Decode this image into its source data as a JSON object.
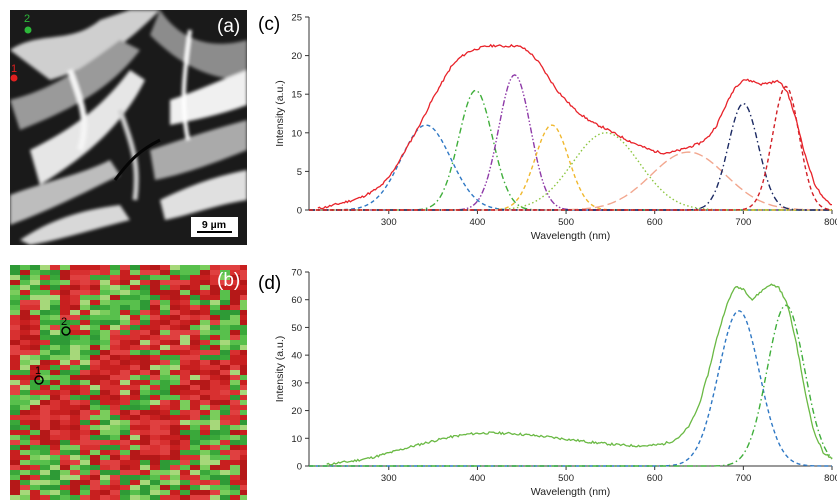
{
  "panels": {
    "a": {
      "label": "(a)",
      "scalebar": "9 µm",
      "markers": [
        {
          "label": "2",
          "color": "#2db83a"
        },
        {
          "label": "1",
          "color": "#e02020"
        }
      ]
    },
    "b": {
      "label": "(b)",
      "markers": [
        {
          "label": "2"
        },
        {
          "label": "1"
        }
      ]
    }
  },
  "chart_data": [
    {
      "panel_label": "(c)",
      "type": "line",
      "xlabel": "Wavelength (nm)",
      "ylabel": "Intensity (a.u.)",
      "xlim": [
        210,
        800
      ],
      "ylim": [
        0,
        25
      ],
      "xticks": [
        300,
        400,
        500,
        600,
        700,
        800
      ],
      "yticks": [
        0,
        5,
        10,
        15,
        20,
        25
      ],
      "measured": {
        "color": "#e8232a",
        "x": [
          220,
          230,
          240,
          250,
          260,
          270,
          280,
          290,
          300,
          310,
          320,
          330,
          340,
          350,
          360,
          370,
          380,
          390,
          400,
          410,
          420,
          430,
          440,
          450,
          460,
          470,
          480,
          490,
          500,
          510,
          520,
          530,
          540,
          550,
          560,
          570,
          580,
          590,
          600,
          610,
          620,
          630,
          640,
          650,
          660,
          670,
          680,
          690,
          700,
          710,
          720,
          730,
          740,
          750,
          760,
          770,
          780,
          790,
          800
        ],
        "y": [
          0.2,
          0.4,
          0.7,
          1.0,
          1.3,
          1.7,
          2.3,
          3.0,
          4.2,
          6.0,
          8.0,
          10.0,
          12.2,
          14.5,
          16.5,
          18.5,
          19.7,
          20.5,
          20.9,
          21.2,
          21.3,
          21.2,
          21.3,
          21.1,
          20.3,
          19.0,
          17.2,
          15.5,
          14.2,
          13.0,
          12.1,
          11.3,
          10.8,
          10.2,
          9.6,
          9.0,
          8.5,
          8.0,
          7.6,
          7.4,
          7.5,
          7.8,
          8.2,
          8.6,
          9.4,
          11.0,
          13.5,
          15.8,
          16.9,
          16.7,
          16.3,
          16.5,
          16.7,
          15.2,
          11.5,
          7.0,
          3.5,
          1.5,
          0.7
        ]
      },
      "components": [
        {
          "color": "#2f78c4",
          "dash": "dash",
          "center": 342,
          "amplitude": 11.0,
          "sigma": 28
        },
        {
          "color": "#3fae3a",
          "dash": "dashdot",
          "center": 398,
          "amplitude": 15.5,
          "sigma": 19
        },
        {
          "color": "#8e3aa8",
          "dash": "dashdotdot",
          "center": 442,
          "amplitude": 17.5,
          "sigma": 18
        },
        {
          "color": "#f0b82e",
          "dash": "dash",
          "center": 484,
          "amplitude": 11.0,
          "sigma": 19
        },
        {
          "color": "#8cc640",
          "dash": "dot",
          "center": 545,
          "amplitude": 10.0,
          "sigma": 38
        },
        {
          "color": "#f2a78f",
          "dash": "longdash",
          "center": 638,
          "amplitude": 7.5,
          "sigma": 42
        },
        {
          "color": "#1c2a63",
          "dash": "dashdot",
          "center": 700,
          "amplitude": 13.8,
          "sigma": 17
        },
        {
          "color": "#d11f26",
          "dash": "dash",
          "center": 748,
          "amplitude": 16.0,
          "sigma": 15
        }
      ]
    },
    {
      "panel_label": "(d)",
      "type": "line",
      "xlabel": "Wavelength (nm)",
      "ylabel": "Intensity (a.u.)",
      "xlim": [
        210,
        800
      ],
      "ylim": [
        0,
        70
      ],
      "xticks": [
        300,
        400,
        500,
        600,
        700,
        800
      ],
      "yticks": [
        0,
        10,
        20,
        30,
        40,
        50,
        60,
        70
      ],
      "measured": {
        "color": "#6ab944",
        "x": [
          230,
          240,
          250,
          260,
          270,
          280,
          290,
          300,
          310,
          320,
          330,
          340,
          350,
          360,
          370,
          380,
          390,
          400,
          410,
          420,
          430,
          440,
          450,
          460,
          470,
          480,
          490,
          500,
          510,
          520,
          530,
          540,
          550,
          560,
          570,
          580,
          590,
          600,
          610,
          620,
          630,
          640,
          650,
          660,
          670,
          680,
          690,
          700,
          710,
          720,
          730,
          740,
          750,
          760,
          770,
          780,
          790,
          800
        ],
        "y": [
          0.5,
          1.0,
          1.4,
          1.8,
          2.4,
          3.0,
          3.8,
          4.7,
          5.6,
          6.5,
          7.4,
          8.2,
          9.0,
          9.8,
          10.5,
          11.0,
          11.5,
          11.8,
          11.9,
          11.9,
          11.8,
          11.7,
          11.4,
          11.1,
          10.8,
          10.5,
          10.1,
          9.7,
          9.3,
          8.9,
          8.5,
          8.2,
          7.9,
          7.6,
          7.4,
          7.3,
          7.3,
          7.5,
          8.0,
          9.0,
          11.0,
          15.0,
          22.0,
          33.0,
          46.0,
          57.0,
          64.5,
          64.0,
          60.0,
          63.0,
          65.5,
          64.5,
          58.0,
          44.0,
          26.0,
          12.0,
          5.0,
          2.5
        ]
      },
      "components": [
        {
          "color": "#2f78c4",
          "dash": "dash",
          "center": 695,
          "amplitude": 56.0,
          "sigma": 23
        },
        {
          "color": "#3fae3a",
          "dash": "dashdot",
          "center": 748,
          "amplitude": 58.0,
          "sigma": 21
        }
      ]
    }
  ]
}
